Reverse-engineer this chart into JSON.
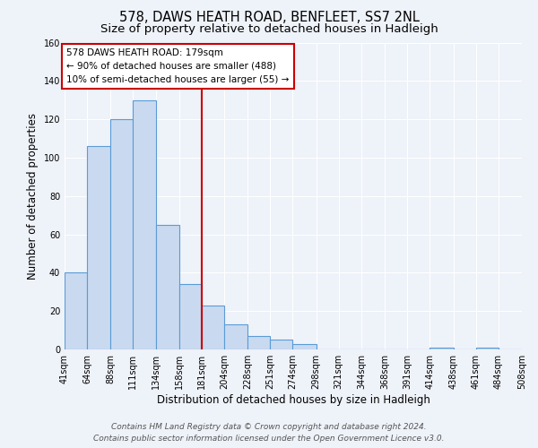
{
  "title": "578, DAWS HEATH ROAD, BENFLEET, SS7 2NL",
  "subtitle": "Size of property relative to detached houses in Hadleigh",
  "xlabel": "Distribution of detached houses by size in Hadleigh",
  "ylabel": "Number of detached properties",
  "bar_edges": [
    41,
    64,
    88,
    111,
    134,
    158,
    181,
    204,
    228,
    251,
    274,
    298,
    321,
    344,
    368,
    391,
    414,
    438,
    461,
    484,
    508
  ],
  "bar_heights": [
    40,
    106,
    120,
    130,
    65,
    34,
    23,
    13,
    7,
    5,
    3,
    0,
    0,
    0,
    0,
    0,
    1,
    0,
    1,
    0
  ],
  "tick_labels": [
    "41sqm",
    "64sqm",
    "88sqm",
    "111sqm",
    "134sqm",
    "158sqm",
    "181sqm",
    "204sqm",
    "228sqm",
    "251sqm",
    "274sqm",
    "298sqm",
    "321sqm",
    "344sqm",
    "368sqm",
    "391sqm",
    "414sqm",
    "438sqm",
    "461sqm",
    "484sqm",
    "508sqm"
  ],
  "vline_x": 181,
  "vline_color": "#cc0000",
  "bar_facecolor": "#c9daf0",
  "bar_edgecolor": "#5b9bd5",
  "ylim": [
    0,
    160
  ],
  "yticks": [
    0,
    20,
    40,
    60,
    80,
    100,
    120,
    140,
    160
  ],
  "annotation_title": "578 DAWS HEATH ROAD: 179sqm",
  "annotation_line1": "← 90% of detached houses are smaller (488)",
  "annotation_line2": "10% of semi-detached houses are larger (55) →",
  "annotation_box_facecolor": "#ffffff",
  "annotation_box_edgecolor": "#cc0000",
  "footer_line1": "Contains HM Land Registry data © Crown copyright and database right 2024.",
  "footer_line2": "Contains public sector information licensed under the Open Government Licence v3.0.",
  "bg_color": "#eef2f9",
  "grid_color": "#ffffff",
  "title_fontsize": 10.5,
  "subtitle_fontsize": 9.5,
  "ylabel_fontsize": 8.5,
  "xlabel_fontsize": 8.5,
  "tick_fontsize": 7,
  "annotation_fontsize": 7.5,
  "footer_fontsize": 6.5
}
